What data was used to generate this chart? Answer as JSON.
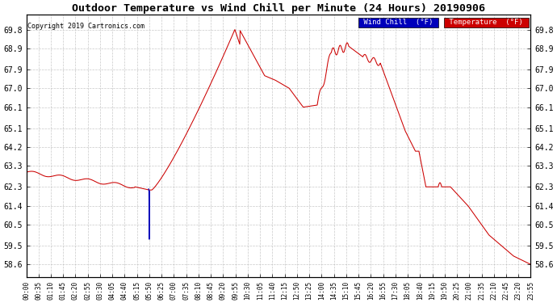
{
  "title": "Outdoor Temperature vs Wind Chill per Minute (24 Hours) 20190906",
  "copyright": "Copyright 2019 Cartronics.com",
  "ylim": [
    58.0,
    70.5
  ],
  "yticks": [
    58.6,
    59.5,
    60.5,
    61.4,
    62.3,
    63.3,
    64.2,
    65.1,
    66.1,
    67.0,
    67.9,
    68.9,
    69.8
  ],
  "background_color": "#ffffff",
  "grid_color": "#bbbbbb",
  "legend_wind_chill_bg": "#0000bb",
  "legend_temp_bg": "#cc0000",
  "temp_color": "#cc0000",
  "wind_chill_color": "#0000bb",
  "xtick_labels": [
    "00:00",
    "00:35",
    "01:10",
    "01:45",
    "02:20",
    "02:55",
    "03:30",
    "04:05",
    "04:40",
    "05:15",
    "05:50",
    "06:25",
    "07:00",
    "07:35",
    "08:10",
    "08:45",
    "09:20",
    "09:55",
    "10:30",
    "11:05",
    "11:40",
    "12:15",
    "12:50",
    "13:25",
    "14:00",
    "14:35",
    "15:10",
    "15:45",
    "16:20",
    "16:55",
    "17:30",
    "18:05",
    "18:40",
    "19:15",
    "19:50",
    "20:25",
    "21:00",
    "21:35",
    "22:10",
    "22:45",
    "23:20",
    "23:55"
  ]
}
